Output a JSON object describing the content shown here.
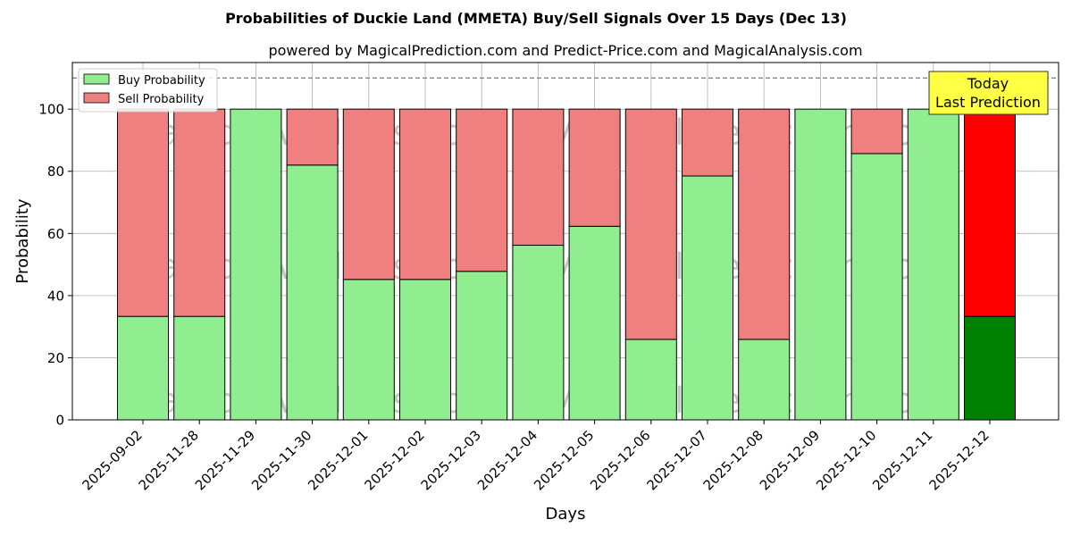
{
  "title": "Probabilities of Duckie Land (MMETA) Buy/Sell Signals Over 15 Days (Dec 13)",
  "subtitle": "powered by MagicalPrediction.com and Predict-Price.com and MagicalAnalysis.com",
  "watermarks": [
    "MagicalAnalysis.com",
    "MagicalPrediction.com"
  ],
  "annotation": {
    "line1": "Today",
    "line2": "Last Prediction"
  },
  "colors": {
    "buy": "#90EE90",
    "sell": "#F08080",
    "buy_today": "#008000",
    "sell_today": "#FF0000",
    "annotation_bg": "#FFFF44",
    "grid": "#b0b0b0"
  },
  "chart_data": {
    "type": "bar",
    "stacked": true,
    "title": "Probabilities of Duckie Land (MMETA) Buy/Sell Signals Over 15 Days (Dec 13)",
    "subtitle": "powered by MagicalPrediction.com and Predict-Price.com and MagicalAnalysis.com",
    "xlabel": "Days",
    "ylabel": "Probability",
    "ylim": [
      0,
      115
    ],
    "yticks": [
      0,
      20,
      40,
      60,
      80,
      100
    ],
    "reference_line": 110,
    "grid": true,
    "legend_position": "top-left",
    "categories": [
      "2025-09-02",
      "2025-11-28",
      "2025-11-29",
      "2025-11-30",
      "2025-12-01",
      "2025-12-02",
      "2025-12-03",
      "2025-12-04",
      "2025-12-05",
      "2025-12-06",
      "2025-12-07",
      "2025-12-08",
      "2025-12-09",
      "2025-12-10",
      "2025-12-11",
      "2025-12-12"
    ],
    "series": [
      {
        "name": "Buy Probability",
        "values": [
          33.3,
          33.3,
          100,
          82,
          45.2,
          45.2,
          47.8,
          56.2,
          62.3,
          25.9,
          78.5,
          25.9,
          100,
          85.7,
          100,
          33.3
        ]
      },
      {
        "name": "Sell Probability",
        "values": [
          66.7,
          66.7,
          0,
          18,
          54.8,
          54.8,
          52.2,
          43.8,
          37.7,
          74.1,
          21.5,
          74.1,
          0,
          14.3,
          0,
          66.7
        ]
      }
    ]
  }
}
